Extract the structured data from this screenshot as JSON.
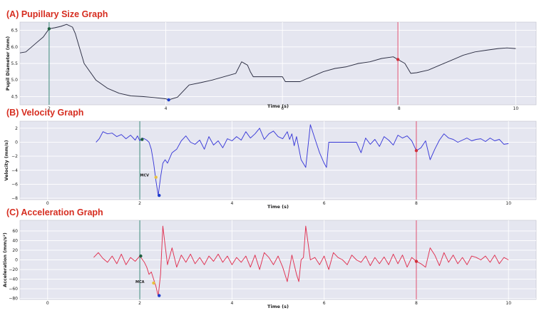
{
  "chart_data": [
    {
      "type": "line",
      "title": "(A) Pupillary Size Graph",
      "xlabel": "Time (s)",
      "ylabel": "Pupil Diameter (mm)",
      "xlim": [
        1.5,
        10.35
      ],
      "ylim": [
        4.25,
        6.75
      ],
      "xticks": [
        2,
        4,
        6,
        8,
        10
      ],
      "yticks": [
        4.5,
        5.0,
        5.5,
        6.0,
        6.5
      ],
      "ytick_labels": [
        "4.5",
        "5.0",
        "5.5",
        "6.0",
        "6.5"
      ],
      "grid": true,
      "background": "#e5e6f0",
      "line_color": "#2b2d42",
      "vlines": [
        {
          "x": 2.0,
          "color": "#3b8a7a"
        },
        {
          "x": 7.98,
          "color": "#e05070"
        }
      ],
      "x": [
        1.5,
        1.6,
        1.7,
        1.8,
        1.9,
        2.0,
        2.1,
        2.2,
        2.3,
        2.4,
        2.45,
        2.5,
        2.6,
        2.8,
        3.0,
        3.2,
        3.4,
        3.6,
        3.8,
        4.0,
        4.05,
        4.2,
        4.4,
        4.6,
        4.8,
        5.0,
        5.2,
        5.3,
        5.4,
        5.45,
        5.5,
        5.7,
        5.9,
        6.0,
        6.05,
        6.3,
        6.5,
        6.7,
        6.9,
        7.1,
        7.3,
        7.5,
        7.7,
        7.9,
        7.98,
        8.1,
        8.2,
        8.3,
        8.5,
        8.7,
        8.9,
        9.1,
        9.3,
        9.5,
        9.7,
        9.85,
        10.0
      ],
      "y": [
        5.82,
        5.85,
        6.0,
        6.15,
        6.3,
        6.55,
        6.58,
        6.62,
        6.68,
        6.6,
        6.4,
        6.1,
        5.5,
        5.0,
        4.75,
        4.6,
        4.52,
        4.5,
        4.47,
        4.43,
        4.4,
        4.48,
        4.85,
        4.92,
        5.0,
        5.1,
        5.2,
        5.55,
        5.45,
        5.25,
        5.1,
        5.1,
        5.1,
        5.1,
        4.95,
        4.95,
        5.1,
        5.25,
        5.35,
        5.4,
        5.5,
        5.55,
        5.65,
        5.7,
        5.62,
        5.5,
        5.2,
        5.22,
        5.3,
        5.45,
        5.6,
        5.75,
        5.85,
        5.9,
        5.95,
        5.97,
        5.95
      ],
      "markers": [
        {
          "x": 2.0,
          "y": 6.55,
          "color": "#1f5f3f"
        },
        {
          "x": 4.05,
          "y": 4.4,
          "color": "#1f3fcc"
        },
        {
          "x": 7.98,
          "y": 5.62,
          "color": "#d0303a"
        }
      ],
      "annotations": []
    },
    {
      "type": "line",
      "title": "(B) Velocity Graph",
      "xlabel": "Time (s)",
      "ylabel": "Velocity (mm/s)",
      "xlim": [
        -0.6,
        10.6
      ],
      "ylim": [
        -8.2,
        3.0
      ],
      "xticks": [
        0,
        2,
        4,
        6,
        8,
        10
      ],
      "yticks": [
        -8,
        -6,
        -4,
        -2,
        0,
        2
      ],
      "ytick_labels": [
        "−8",
        "−6",
        "−4",
        "−2",
        "0",
        "2"
      ],
      "grid": true,
      "background": "#e5e6f0",
      "line_color": "#3a3ad8",
      "vlines": [
        {
          "x": 2.0,
          "color": "#3b8a7a"
        },
        {
          "x": 8.0,
          "color": "#e05070"
        }
      ],
      "x": [
        1.05,
        1.12,
        1.2,
        1.3,
        1.4,
        1.5,
        1.6,
        1.7,
        1.8,
        1.9,
        1.95,
        2.0,
        2.05,
        2.1,
        2.15,
        2.2,
        2.25,
        2.3,
        2.35,
        2.4,
        2.45,
        2.5,
        2.55,
        2.6,
        2.7,
        2.8,
        2.9,
        3.0,
        3.1,
        3.2,
        3.3,
        3.4,
        3.5,
        3.6,
        3.7,
        3.8,
        3.9,
        4.0,
        4.1,
        4.2,
        4.3,
        4.4,
        4.5,
        4.6,
        4.7,
        4.8,
        4.9,
        5.0,
        5.1,
        5.2,
        5.25,
        5.3,
        5.35,
        5.4,
        5.5,
        5.6,
        5.7,
        5.8,
        5.9,
        6.0,
        6.05,
        6.1,
        6.2,
        6.3,
        6.4,
        6.5,
        6.6,
        6.7,
        6.8,
        6.9,
        7.0,
        7.1,
        7.2,
        7.3,
        7.4,
        7.5,
        7.6,
        7.7,
        7.8,
        7.9,
        8.0,
        8.1,
        8.2,
        8.3,
        8.4,
        8.5,
        8.6,
        8.7,
        8.8,
        8.9,
        9.0,
        9.1,
        9.2,
        9.3,
        9.4,
        9.5,
        9.6,
        9.7,
        9.8,
        9.9,
        10.0
      ],
      "y": [
        0.0,
        0.5,
        1.5,
        1.2,
        1.3,
        0.8,
        1.1,
        0.5,
        1.0,
        0.3,
        0.9,
        0.2,
        0.6,
        0.5,
        0.3,
        0.0,
        -1.0,
        -3.0,
        -5.5,
        -7.6,
        -5.0,
        -3.0,
        -2.5,
        -3.0,
        -1.5,
        -1.0,
        0.2,
        0.9,
        0.0,
        -0.3,
        0.3,
        -1.0,
        0.8,
        -0.4,
        0.2,
        -0.8,
        0.5,
        0.2,
        0.8,
        0.3,
        1.5,
        0.6,
        1.2,
        2.0,
        0.4,
        1.2,
        1.6,
        0.8,
        0.5,
        1.5,
        0.4,
        1.2,
        -0.5,
        0.8,
        -2.5,
        -3.6,
        2.5,
        0.5,
        -1.5,
        -3.0,
        -3.6,
        0.0,
        0.0,
        0.0,
        0.0,
        0.0,
        0.0,
        0.0,
        -1.5,
        0.6,
        -0.3,
        0.4,
        -0.6,
        0.8,
        0.3,
        -0.4,
        1.0,
        0.6,
        0.9,
        0.2,
        -1.2,
        -0.8,
        0.2,
        -2.5,
        -1.0,
        0.3,
        1.2,
        0.6,
        0.4,
        0.0,
        0.3,
        0.6,
        0.2,
        0.4,
        0.5,
        0.1,
        0.6,
        0.2,
        0.4,
        -0.3,
        -0.2
      ],
      "markers": [
        {
          "x": 2.05,
          "y": 0.4,
          "color": "#1f5f3f"
        },
        {
          "x": 2.42,
          "y": -7.6,
          "color": "#1f3fcc"
        },
        {
          "x": 8.0,
          "y": -1.2,
          "color": "#d0303a"
        },
        {
          "x": 2.35,
          "y": -5.0,
          "color": "#e8c040"
        }
      ],
      "annotations": [
        {
          "text": "MCV",
          "x": 2.2,
          "y": -4.9
        }
      ]
    },
    {
      "type": "line",
      "title": "(C) Acceleration Graph",
      "xlabel": "Time (s)",
      "ylabel": "Acceleration (mm/s²)",
      "xlim": [
        -0.6,
        10.6
      ],
      "ylim": [
        -82,
        82
      ],
      "xticks": [
        0,
        2,
        4,
        6,
        8,
        10
      ],
      "yticks": [
        -80,
        -60,
        -40,
        -20,
        0,
        20,
        40,
        60
      ],
      "ytick_labels": [
        "−80",
        "−60",
        "−40",
        "−20",
        "0",
        "20",
        "40",
        "60"
      ],
      "grid": true,
      "background": "#e5e6f0",
      "line_color": "#e03050",
      "vlines": [
        {
          "x": 2.0,
          "color": "#3b8a7a"
        },
        {
          "x": 8.0,
          "color": "#e05070"
        }
      ],
      "x": [
        1.0,
        1.1,
        1.2,
        1.3,
        1.4,
        1.5,
        1.6,
        1.7,
        1.8,
        1.9,
        2.0,
        2.1,
        2.15,
        2.2,
        2.25,
        2.3,
        2.35,
        2.4,
        2.45,
        2.5,
        2.55,
        2.6,
        2.7,
        2.8,
        2.9,
        3.0,
        3.1,
        3.2,
        3.3,
        3.4,
        3.5,
        3.6,
        3.7,
        3.8,
        3.9,
        4.0,
        4.1,
        4.2,
        4.3,
        4.4,
        4.5,
        4.6,
        4.7,
        4.8,
        4.9,
        5.0,
        5.1,
        5.2,
        5.3,
        5.4,
        5.45,
        5.5,
        5.55,
        5.6,
        5.7,
        5.8,
        5.9,
        6.0,
        6.1,
        6.2,
        6.3,
        6.4,
        6.5,
        6.6,
        6.7,
        6.8,
        6.9,
        7.0,
        7.1,
        7.2,
        7.3,
        7.4,
        7.5,
        7.6,
        7.7,
        7.8,
        7.9,
        8.0,
        8.1,
        8.2,
        8.3,
        8.4,
        8.5,
        8.6,
        8.7,
        8.8,
        8.9,
        9.0,
        9.1,
        9.2,
        9.3,
        9.4,
        9.5,
        9.6,
        9.7,
        9.8,
        9.9,
        10.0
      ],
      "y": [
        5,
        15,
        3,
        -5,
        8,
        -8,
        12,
        -10,
        5,
        -3,
        8,
        -5,
        -15,
        -30,
        -25,
        -40,
        -55,
        -75,
        -30,
        70,
        30,
        -10,
        25,
        -15,
        10,
        -5,
        12,
        -8,
        5,
        -10,
        8,
        -3,
        12,
        -5,
        8,
        -10,
        5,
        -5,
        8,
        -15,
        10,
        -20,
        15,
        5,
        -10,
        8,
        -15,
        -45,
        10,
        -30,
        -45,
        0,
        5,
        70,
        0,
        5,
        -10,
        8,
        -20,
        15,
        5,
        0,
        -10,
        10,
        0,
        -5,
        8,
        -12,
        5,
        -8,
        6,
        -10,
        12,
        -8,
        10,
        -15,
        5,
        -3,
        -8,
        -15,
        25,
        10,
        -12,
        15,
        -5,
        10,
        -8,
        5,
        -10,
        8,
        5,
        0,
        8,
        -5,
        10,
        -8,
        5,
        0
      ],
      "markers": [
        {
          "x": 2.02,
          "y": 8,
          "color": "#1f5f3f"
        },
        {
          "x": 2.42,
          "y": -74,
          "color": "#1f3fcc"
        },
        {
          "x": 8.0,
          "y": -3,
          "color": "#d0303a"
        },
        {
          "x": 2.3,
          "y": -48,
          "color": "#e8c040"
        }
      ],
      "annotations": [
        {
          "text": "MCA",
          "x": 2.1,
          "y": -48
        }
      ]
    }
  ]
}
